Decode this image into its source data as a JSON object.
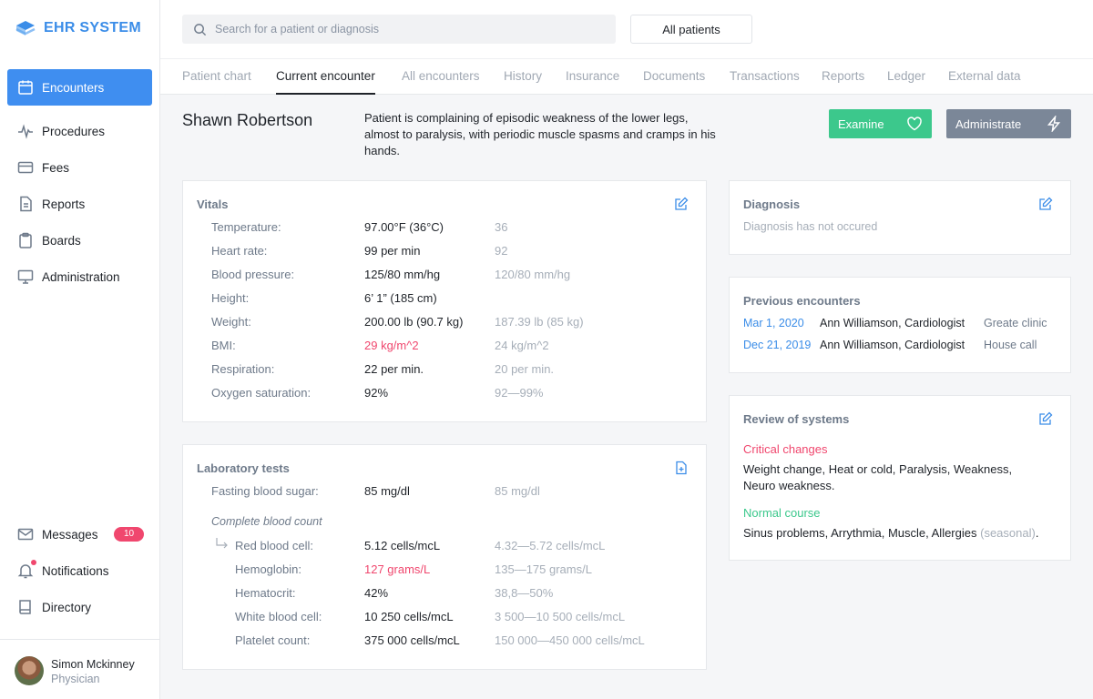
{
  "app": {
    "logo_text": "EHR SYSTEM"
  },
  "sidebar": {
    "nav": [
      {
        "label": "Encounters",
        "icon": "calendar-icon",
        "active": true
      },
      {
        "label": "Procedures",
        "icon": "pulse-icon"
      },
      {
        "label": "Fees",
        "icon": "card-icon"
      },
      {
        "label": "Reports",
        "icon": "document-icon"
      },
      {
        "label": "Boards",
        "icon": "clipboard-icon"
      },
      {
        "label": "Administration",
        "icon": "monitor-icon"
      }
    ],
    "bottom": [
      {
        "label": "Messages",
        "icon": "mail-icon",
        "badge": "10"
      },
      {
        "label": "Notifications",
        "icon": "bell-icon"
      },
      {
        "label": "Directory",
        "icon": "book-icon"
      }
    ],
    "user": {
      "name": "Simon Mckinney",
      "role": "Physician"
    }
  },
  "topbar": {
    "search_placeholder": "Search for a patient or diagnosis",
    "filter_label": "All patients"
  },
  "tabs": [
    "Patient chart",
    "Current encounter",
    "All encounters",
    "History",
    "Insurance",
    "Documents",
    "Transactions",
    "Reports",
    "Ledger",
    "External data"
  ],
  "active_tab": "Current encounter",
  "patient": {
    "name": "Shawn Robertson",
    "complaint": "Patient is complaining of episodic weakness of the lower legs, almost to paralysis, with periodic muscle spasms and cramps in his hands."
  },
  "actions": {
    "examine": "Examine",
    "administrate": "Administrate"
  },
  "vitals": {
    "title": "Vitals",
    "rows": [
      {
        "label": "Temperature:",
        "value": "97.00°F (36°C)",
        "ref": "36"
      },
      {
        "label": "Heart rate:",
        "value": "99 per min",
        "ref": "92"
      },
      {
        "label": "Blood pressure:",
        "value": "125/80 mm/hg",
        "ref": "120/80 mm/hg"
      },
      {
        "label": "Height:",
        "value": "6’ 1” (185 cm)",
        "ref": ""
      },
      {
        "label": "Weight:",
        "value": "200.00 lb (90.7 kg)",
        "ref": "187.39 lb (85 kg)"
      },
      {
        "label": "BMI:",
        "value": "29 kg/m^2",
        "ref": "24 kg/m^2",
        "abnormal": true
      },
      {
        "label": "Respiration:",
        "value": "22 per min.",
        "ref": "20 per min."
      },
      {
        "label": "Oxygen saturation:",
        "value": "92%",
        "ref": "92—99%"
      }
    ]
  },
  "lab": {
    "title": "Laboratory tests",
    "fasting": {
      "label": "Fasting blood sugar:",
      "value": "85 mg/dl",
      "ref": "85 mg/dl"
    },
    "cbc_title": "Complete blood count",
    "cbc": [
      {
        "label": "Red blood cell:",
        "value": "5.12 cells/mcL",
        "ref": "4.32—5.72 cells/mcL"
      },
      {
        "label": "Hemoglobin:",
        "value": "127 grams/L",
        "ref": "135—175 grams/L",
        "abnormal": true
      },
      {
        "label": "Hematocrit:",
        "value": "42%",
        "ref": "38,8—50%"
      },
      {
        "label": "White blood cell:",
        "value": "10 250 cells/mcL",
        "ref": "3 500—10 500 cells/mcL"
      },
      {
        "label": "Platelet count:",
        "value": "375 000 cells/mcL",
        "ref": "150 000—450 000 cells/mcL"
      }
    ]
  },
  "diagnosis": {
    "title": "Diagnosis",
    "empty": "Diagnosis has not occured"
  },
  "previous": {
    "title": "Previous encounters",
    "rows": [
      {
        "date": "Mar 1, 2020",
        "doctor": "Ann Williamson, Cardiologist",
        "place": "Greate clinic"
      },
      {
        "date": "Dec 21, 2019",
        "doctor": "Ann Williamson, Cardiologist",
        "place": "House call"
      }
    ]
  },
  "review": {
    "title": "Review of systems",
    "critical_title": "Critical changes",
    "critical_text": "Weight change, Heat or cold, Paralysis, Weakness, Neuro weakness.",
    "normal_title": "Normal course",
    "normal_text_main": "Sinus problems, Arrythmia, Muscle, Allergies",
    "normal_text_note": "(seasonal)",
    "normal_text_end": "."
  },
  "colors": {
    "accent": "#3f8ef0",
    "success": "#3cc88c",
    "danger": "#f0476e",
    "muted": "#7b8798"
  }
}
